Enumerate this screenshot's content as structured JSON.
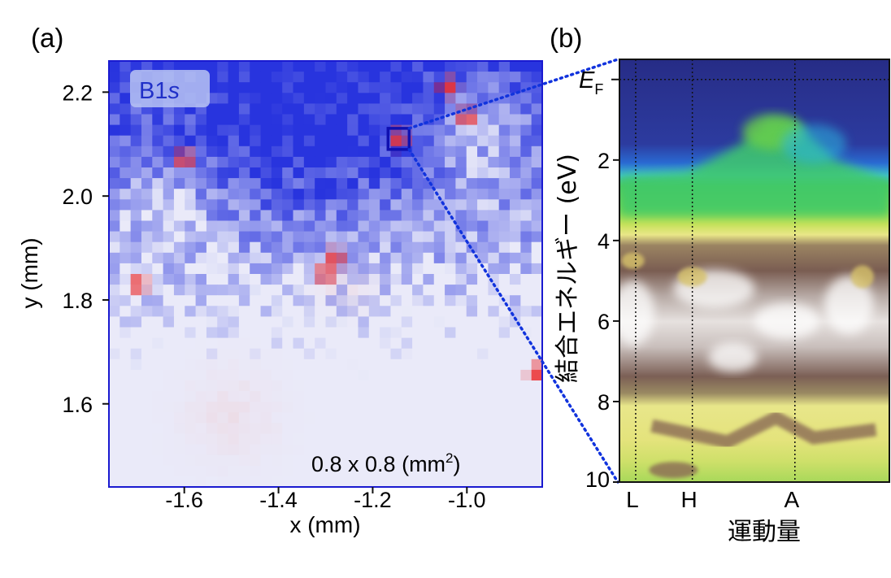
{
  "panels": [
    {
      "label": "(a)",
      "element_tag": "B1",
      "element_tag_suffix": "s",
      "area_note": "0.8 x 0.8 (mm",
      "area_note_sup": "2",
      "area_note_end": ")",
      "colors": {
        "low": "#2233e0",
        "mid": "#f4f4f8",
        "high": "#ee2222",
        "frame": "#1a1ad0"
      }
    },
    {
      "label": "(b)",
      "fermi_label": "E",
      "fermi_sub": "F",
      "colors": {
        "frame": "#111111",
        "zoom_lines": "#1133dd"
      }
    }
  ],
  "chart_data": [
    {
      "type": "heatmap",
      "title": "",
      "xlabel": "x (mm)",
      "ylabel": "y (mm)",
      "xlim": [
        -1.76,
        -0.84
      ],
      "ylim": [
        1.44,
        2.26
      ],
      "x_ticks": [
        -1.6,
        -1.4,
        -1.2,
        -1.0
      ],
      "x_tick_labels": [
        "-1.6",
        "-1.4",
        "-1.2",
        "-1.0"
      ],
      "y_ticks": [
        1.6,
        1.8,
        2.0,
        2.2
      ],
      "y_tick_labels": [
        "1.6",
        "1.8",
        "2.0",
        "2.2"
      ],
      "colormap": "blue-white-red",
      "highlight_point": {
        "x": -1.145,
        "y": 2.11
      },
      "hot_spots": [
        {
          "x": -1.145,
          "y": 2.11
        },
        {
          "x": -1.04,
          "y": 2.21
        },
        {
          "x": -1.0,
          "y": 2.15
        },
        {
          "x": -1.3,
          "y": 1.85
        },
        {
          "x": -1.28,
          "y": 1.88
        },
        {
          "x": -1.7,
          "y": 1.83
        },
        {
          "x": -0.85,
          "y": 1.66
        },
        {
          "x": -1.6,
          "y": 2.07
        }
      ]
    },
    {
      "type": "heatmap",
      "title": "",
      "xlabel": "運動量",
      "ylabel": "結合エネルギー (eV)",
      "ylim": [
        10,
        -0.5
      ],
      "y_ticks": [
        2,
        4,
        6,
        8,
        10
      ],
      "y_tick_labels": [
        "2",
        "4",
        "6",
        "8",
        "10"
      ],
      "k_points": [
        {
          "label": "L",
          "k": 0.06
        },
        {
          "label": "H",
          "k": 0.27
        },
        {
          "label": "A",
          "k": 0.65
        }
      ],
      "fermi_energy": 0,
      "colormap": "navy-cyan-green-yellow-brown-white",
      "bands": [
        {
          "name": "",
          "points": [
            [
              0.0,
              2.4
            ],
            [
              0.25,
              2.3
            ],
            [
              0.45,
              1.6
            ],
            [
              0.55,
              1.0
            ],
            [
              0.65,
              1.05
            ],
            [
              0.8,
              2.0
            ],
            [
              1.0,
              2.5
            ]
          ]
        }
      ]
    }
  ]
}
